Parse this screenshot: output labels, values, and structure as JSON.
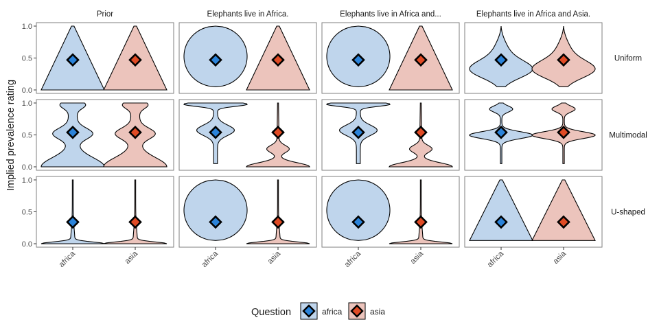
{
  "chart_data": {
    "type": "violin",
    "ylabel": "Implied prevalence rating",
    "ylim": [
      0,
      1
    ],
    "yticks": [
      0.0,
      0.5,
      1.0
    ],
    "ytick_labels": [
      "0.0",
      "0.5",
      "1.0"
    ],
    "categories": [
      "africa",
      "asia"
    ],
    "columns": [
      "Prior",
      "Elephants live in Africa.",
      "Elephants live in Africa and...",
      "Elephants live in Africa and Asia."
    ],
    "rows": [
      "Uniform",
      "Multimodal",
      "U-shaped"
    ],
    "legend": {
      "title": "Question",
      "placement": "bottom",
      "entries": [
        {
          "label": "africa",
          "fill": "#bfd5ec",
          "point": "#2b83d9"
        },
        {
          "label": "asia",
          "fill": "#ecc4bc",
          "point": "#e04b25"
        }
      ]
    },
    "colors": {
      "africa_violin": "#bfd5ec",
      "asia_violin": "#ecc4bc",
      "africa_point": "#2b83d9",
      "asia_point": "#e04b25"
    },
    "grid": false,
    "panels": [
      {
        "row": "Uniform",
        "column": "Prior",
        "africa": {
          "mean": 0.47,
          "range": [
            0.0,
            1.0
          ],
          "shape": "triangle-up"
        },
        "asia": {
          "mean": 0.47,
          "range": [
            0.0,
            1.0
          ],
          "shape": "triangle-up"
        }
      },
      {
        "row": "Uniform",
        "column": "Elephants live in Africa.",
        "africa": {
          "mean": 0.47,
          "range": [
            0.05,
            1.0
          ],
          "shape": "ellipse"
        },
        "asia": {
          "mean": 0.47,
          "range": [
            0.0,
            1.0
          ],
          "shape": "triangle-up"
        }
      },
      {
        "row": "Uniform",
        "column": "Elephants live in Africa and...",
        "africa": {
          "mean": 0.47,
          "range": [
            0.05,
            1.0
          ],
          "shape": "ellipse"
        },
        "asia": {
          "mean": 0.47,
          "range": [
            0.0,
            1.0
          ],
          "shape": "triangle-up"
        }
      },
      {
        "row": "Uniform",
        "column": "Elephants live in Africa and Asia.",
        "africa": {
          "mean": 0.47,
          "range": [
            0.05,
            1.0
          ],
          "shape": "peak-low-mid"
        },
        "asia": {
          "mean": 0.47,
          "range": [
            0.05,
            1.0
          ],
          "shape": "peak-low-mid"
        }
      },
      {
        "row": "Multimodal",
        "column": "Prior",
        "africa": {
          "mean": 0.54,
          "range": [
            0.0,
            1.0
          ],
          "shape": "trimodal"
        },
        "asia": {
          "mean": 0.54,
          "range": [
            0.0,
            1.0
          ],
          "shape": "trimodal"
        }
      },
      {
        "row": "Multimodal",
        "column": "Elephants live in Africa.",
        "africa": {
          "mean": 0.54,
          "range": [
            0.05,
            1.0
          ],
          "shape": "high-bimodal"
        },
        "asia": {
          "mean": 0.54,
          "range": [
            0.0,
            1.0
          ],
          "shape": "low-heavy"
        }
      },
      {
        "row": "Multimodal",
        "column": "Elephants live in Africa and...",
        "africa": {
          "mean": 0.54,
          "range": [
            0.05,
            1.0
          ],
          "shape": "high-bimodal"
        },
        "asia": {
          "mean": 0.54,
          "range": [
            0.0,
            1.0
          ],
          "shape": "low-heavy"
        }
      },
      {
        "row": "Multimodal",
        "column": "Elephants live in Africa and Asia.",
        "africa": {
          "mean": 0.54,
          "range": [
            0.05,
            1.0
          ],
          "shape": "mid-peak"
        },
        "asia": {
          "mean": 0.54,
          "range": [
            0.05,
            1.0
          ],
          "shape": "mid-peak"
        }
      },
      {
        "row": "U-shaped",
        "column": "Prior",
        "africa": {
          "mean": 0.34,
          "range": [
            0.0,
            1.0
          ],
          "shape": "spike-low"
        },
        "asia": {
          "mean": 0.34,
          "range": [
            0.0,
            1.0
          ],
          "shape": "spike-low"
        }
      },
      {
        "row": "U-shaped",
        "column": "Elephants live in Africa.",
        "africa": {
          "mean": 0.34,
          "range": [
            0.05,
            1.0
          ],
          "shape": "narrow-tall"
        },
        "asia": {
          "mean": 0.34,
          "range": [
            0.0,
            1.0
          ],
          "shape": "spike-low"
        }
      },
      {
        "row": "U-shaped",
        "column": "Elephants live in Africa and...",
        "africa": {
          "mean": 0.34,
          "range": [
            0.05,
            1.0
          ],
          "shape": "narrow-tall"
        },
        "asia": {
          "mean": 0.34,
          "range": [
            0.0,
            1.0
          ],
          "shape": "spike-low"
        }
      },
      {
        "row": "U-shaped",
        "column": "Elephants live in Africa and Asia.",
        "africa": {
          "mean": 0.34,
          "range": [
            0.05,
            1.0
          ],
          "shape": "triangle-up"
        },
        "asia": {
          "mean": 0.34,
          "range": [
            0.05,
            1.0
          ],
          "shape": "triangle-up"
        }
      }
    ]
  }
}
